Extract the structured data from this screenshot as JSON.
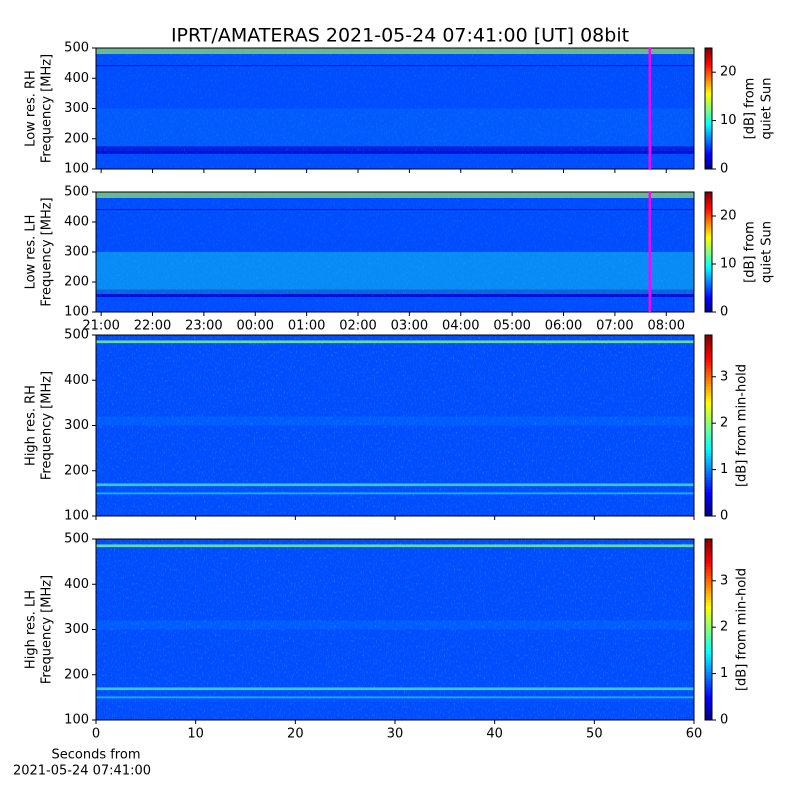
{
  "chart_data": [
    {
      "type": "heatmap",
      "title": "IPRT/AMATERAS 2021-05-24 07:41:00 [UT]   08bit",
      "ylabel": [
        "Low res. RH",
        "Frequency [MHz]"
      ],
      "ylim": [
        100,
        500
      ],
      "yticks": [
        100,
        200,
        300,
        400,
        500
      ],
      "xlim": [
        20.9,
        32.54
      ],
      "colormap": "jet",
      "marker_x": 31.68,
      "marker_color": "#ff00ff",
      "colorbar": {
        "label": [
          "[dB] from",
          "quiet Sun"
        ],
        "lim": [
          0,
          25
        ],
        "ticks": [
          0,
          10,
          20
        ]
      }
    },
    {
      "type": "heatmap",
      "ylabel": [
        "Low res. LH",
        "Frequency [MHz]"
      ],
      "ylim": [
        100,
        500
      ],
      "yticks": [
        100,
        200,
        300,
        400,
        500
      ],
      "xlim": [
        20.9,
        32.54
      ],
      "colormap": "jet",
      "marker_x": 31.68,
      "marker_color": "#ff00ff",
      "xticks": [
        {
          "value": 21,
          "label": "21:00"
        },
        {
          "value": 22,
          "label": "22:00"
        },
        {
          "value": 23,
          "label": "23:00"
        },
        {
          "value": 24,
          "label": "00:00"
        },
        {
          "value": 25,
          "label": "01:00"
        },
        {
          "value": 26,
          "label": "02:00"
        },
        {
          "value": 27,
          "label": "03:00"
        },
        {
          "value": 28,
          "label": "04:00"
        },
        {
          "value": 29,
          "label": "05:00"
        },
        {
          "value": 30,
          "label": "06:00"
        },
        {
          "value": 31,
          "label": "07:00"
        },
        {
          "value": 32,
          "label": "08:00"
        }
      ],
      "colorbar": {
        "label": [
          "[dB] from",
          "quiet Sun"
        ],
        "lim": [
          0,
          25
        ],
        "ticks": [
          0,
          10,
          20
        ]
      }
    },
    {
      "type": "heatmap",
      "ylabel": [
        "High res. RH",
        "Frequency [MHz]"
      ],
      "ylim": [
        100,
        500
      ],
      "yticks": [
        100,
        200,
        300,
        400,
        500
      ],
      "xlim": [
        0,
        60
      ],
      "colormap": "jet",
      "colorbar": {
        "label": [
          "[dB] from min-hold"
        ],
        "lim": [
          0,
          3.9
        ],
        "ticks": [
          0,
          1,
          2,
          3
        ]
      }
    },
    {
      "type": "heatmap",
      "ylabel": [
        "High res. LH",
        "Frequency [MHz]"
      ],
      "ylim": [
        100,
        500
      ],
      "yticks": [
        100,
        200,
        300,
        400,
        500
      ],
      "xlim": [
        0,
        60
      ],
      "colormap": "jet",
      "xticks": [
        0,
        10,
        20,
        30,
        40,
        50,
        60
      ],
      "xlabel": [
        "Seconds from",
        "2021-05-24 07:41:00"
      ],
      "colorbar": {
        "label": [
          "[dB] from min-hold"
        ],
        "lim": [
          0,
          3.9
        ],
        "ticks": [
          0,
          1,
          2,
          3
        ]
      }
    }
  ]
}
